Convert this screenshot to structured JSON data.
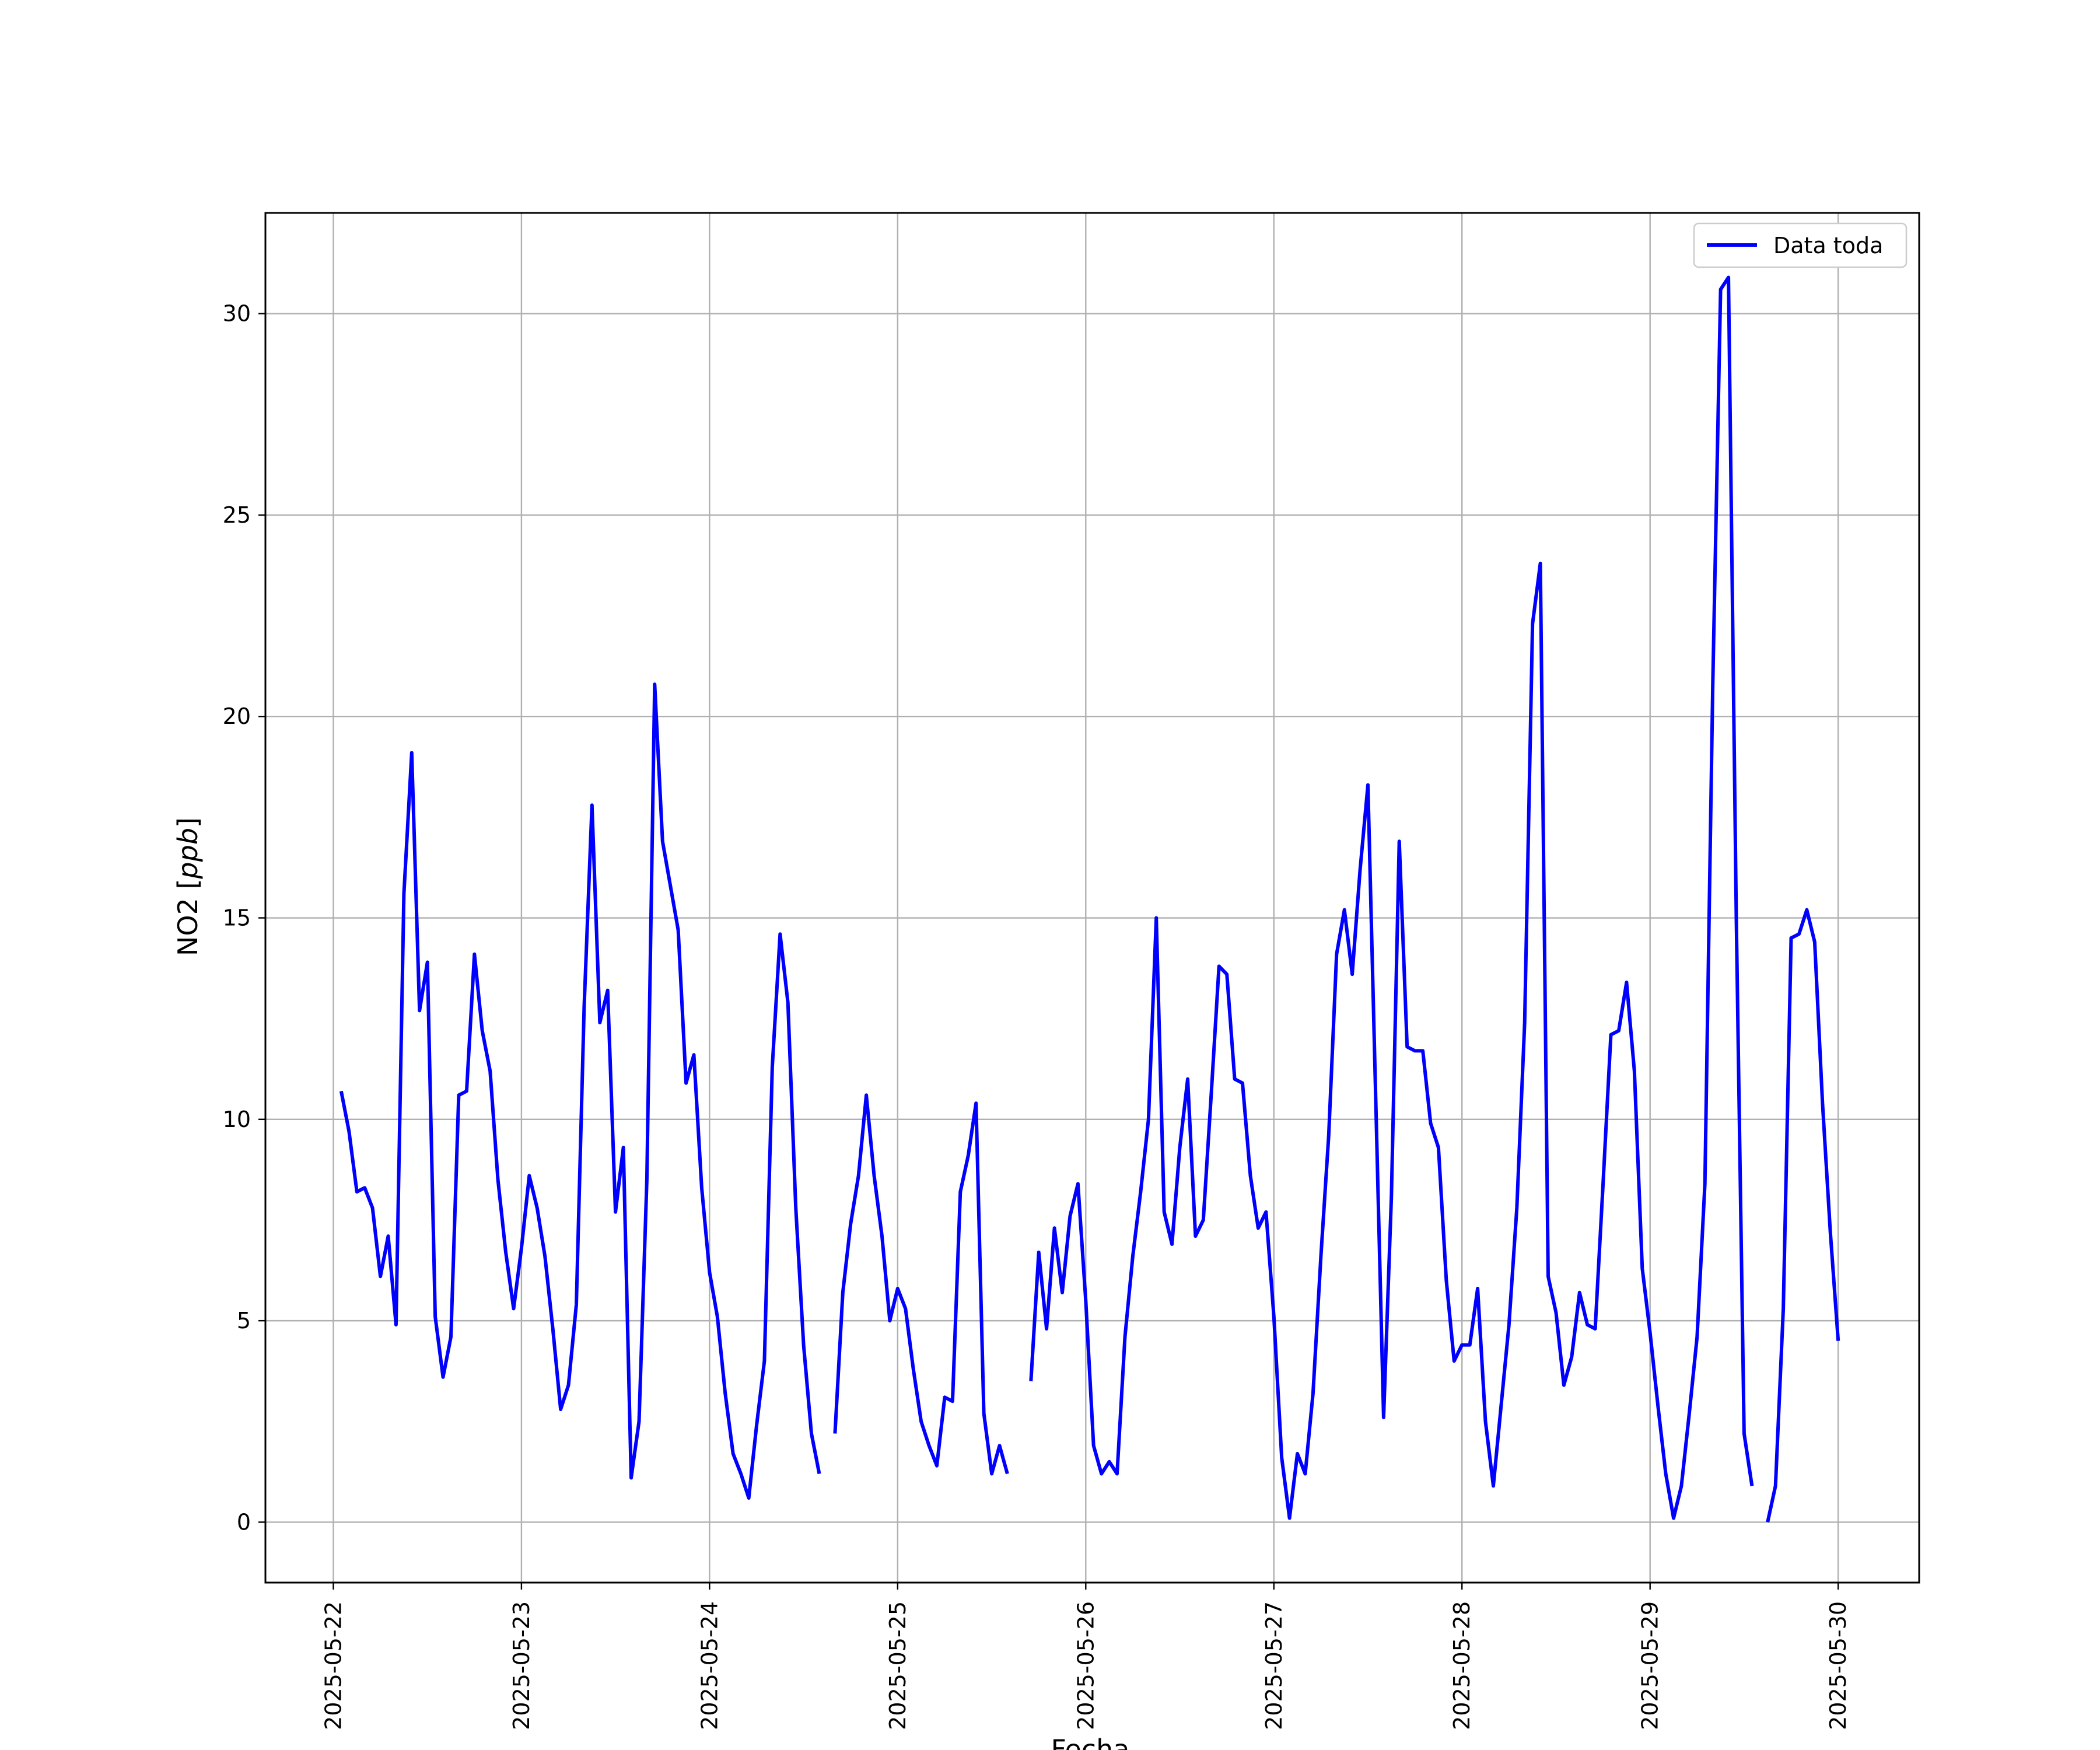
{
  "chart_data": {
    "type": "line",
    "title": "",
    "xlabel": "Fecha",
    "ylabel_main": "NO2 [",
    "ylabel_italic": "ppb",
    "ylabel_end": "]",
    "xlim": [
      "2025-05-21 15:20",
      "2025-05-30 10:20"
    ],
    "ylim": [
      -1.5,
      32.5
    ],
    "grid": true,
    "legend_position": "top-right",
    "line_color": "#0000ff",
    "x_ticks": [
      "2025-05-22",
      "2025-05-23",
      "2025-05-24",
      "2025-05-25",
      "2025-05-26",
      "2025-05-27",
      "2025-05-28",
      "2025-05-29",
      "2025-05-30"
    ],
    "y_ticks": [
      0,
      5,
      10,
      15,
      20,
      25,
      30
    ],
    "series": [
      {
        "name": "Data toda",
        "segments": [
          [
            [
              "2025-05-22 01:00",
              10.7
            ],
            [
              "2025-05-22 02:00",
              9.7
            ],
            [
              "2025-05-22 03:00",
              8.2
            ],
            [
              "2025-05-22 04:00",
              8.3
            ],
            [
              "2025-05-22 05:00",
              7.8
            ],
            [
              "2025-05-22 06:00",
              6.1
            ],
            [
              "2025-05-22 07:00",
              7.1
            ],
            [
              "2025-05-22 08:00",
              4.9
            ],
            [
              "2025-05-22 09:00",
              15.6
            ],
            [
              "2025-05-22 10:00",
              19.1
            ],
            [
              "2025-05-22 11:00",
              12.7
            ],
            [
              "2025-05-22 12:00",
              13.9
            ],
            [
              "2025-05-22 13:00",
              5.1
            ],
            [
              "2025-05-22 14:00",
              3.6
            ],
            [
              "2025-05-22 15:00",
              4.6
            ],
            [
              "2025-05-22 16:00",
              10.6
            ],
            [
              "2025-05-22 17:00",
              10.7
            ],
            [
              "2025-05-22 18:00",
              14.1
            ],
            [
              "2025-05-22 19:00",
              12.2
            ],
            [
              "2025-05-22 20:00",
              11.2
            ],
            [
              "2025-05-22 21:00",
              8.5
            ],
            [
              "2025-05-22 22:00",
              6.7
            ],
            [
              "2025-05-22 23:00",
              5.3
            ],
            [
              "2025-05-23 00:00",
              6.8
            ],
            [
              "2025-05-23 01:00",
              8.6
            ],
            [
              "2025-05-23 02:00",
              7.8
            ],
            [
              "2025-05-23 03:00",
              6.6
            ],
            [
              "2025-05-23 04:00",
              4.8
            ],
            [
              "2025-05-23 05:00",
              2.8
            ],
            [
              "2025-05-23 06:00",
              3.4
            ],
            [
              "2025-05-23 07:00",
              5.4
            ],
            [
              "2025-05-23 08:00",
              12.8
            ],
            [
              "2025-05-23 09:00",
              17.8
            ],
            [
              "2025-05-23 10:00",
              12.4
            ],
            [
              "2025-05-23 11:00",
              13.2
            ],
            [
              "2025-05-23 12:00",
              7.7
            ],
            [
              "2025-05-23 13:00",
              9.3
            ],
            [
              "2025-05-23 14:00",
              1.1
            ],
            [
              "2025-05-23 15:00",
              2.5
            ],
            [
              "2025-05-23 16:00",
              8.5
            ],
            [
              "2025-05-23 17:00",
              20.8
            ],
            [
              "2025-05-23 18:00",
              16.9
            ],
            [
              "2025-05-23 19:00",
              15.8
            ],
            [
              "2025-05-23 20:00",
              14.7
            ],
            [
              "2025-05-23 21:00",
              10.9
            ],
            [
              "2025-05-23 22:00",
              11.6
            ],
            [
              "2025-05-23 23:00",
              8.3
            ],
            [
              "2025-05-24 00:00",
              6.2
            ],
            [
              "2025-05-24 01:00",
              5.1
            ],
            [
              "2025-05-24 02:00",
              3.2
            ],
            [
              "2025-05-24 03:00",
              1.7
            ],
            [
              "2025-05-24 04:00",
              1.2
            ],
            [
              "2025-05-24 05:00",
              0.6
            ],
            [
              "2025-05-24 06:00",
              2.4
            ],
            [
              "2025-05-24 07:00",
              4.0
            ],
            [
              "2025-05-24 08:00",
              11.3
            ],
            [
              "2025-05-24 09:00",
              14.6
            ],
            [
              "2025-05-24 10:00",
              12.9
            ],
            [
              "2025-05-24 11:00",
              7.8
            ],
            [
              "2025-05-24 12:00",
              4.4
            ],
            [
              "2025-05-24 13:00",
              2.2
            ],
            [
              "2025-05-24 14:00",
              1.2
            ]
          ],
          [
            [
              "2025-05-24 16:00",
              2.2
            ],
            [
              "2025-05-24 17:00",
              5.7
            ],
            [
              "2025-05-24 18:00",
              7.4
            ],
            [
              "2025-05-24 19:00",
              8.6
            ],
            [
              "2025-05-24 20:00",
              10.6
            ],
            [
              "2025-05-24 21:00",
              8.6
            ],
            [
              "2025-05-24 22:00",
              7.1
            ],
            [
              "2025-05-24 23:00",
              5.0
            ],
            [
              "2025-05-25 00:00",
              5.8
            ],
            [
              "2025-05-25 01:00",
              5.3
            ],
            [
              "2025-05-25 02:00",
              3.8
            ],
            [
              "2025-05-25 03:00",
              2.5
            ],
            [
              "2025-05-25 04:00",
              1.9
            ],
            [
              "2025-05-25 05:00",
              1.4
            ],
            [
              "2025-05-25 06:00",
              3.1
            ],
            [
              "2025-05-25 07:00",
              3.0
            ],
            [
              "2025-05-25 08:00",
              8.2
            ],
            [
              "2025-05-25 09:00",
              9.1
            ],
            [
              "2025-05-25 10:00",
              10.4
            ],
            [
              "2025-05-25 11:00",
              2.7
            ],
            [
              "2025-05-25 12:00",
              1.2
            ],
            [
              "2025-05-25 13:00",
              1.9
            ],
            [
              "2025-05-25 14:00",
              1.2
            ]
          ],
          [
            [
              "2025-05-25 17:00",
              3.5
            ],
            [
              "2025-05-25 18:00",
              6.7
            ],
            [
              "2025-05-25 19:00",
              4.8
            ],
            [
              "2025-05-25 20:00",
              7.3
            ],
            [
              "2025-05-25 21:00",
              5.7
            ],
            [
              "2025-05-25 22:00",
              7.6
            ],
            [
              "2025-05-25 23:00",
              8.4
            ],
            [
              "2025-05-26 00:00",
              5.5
            ],
            [
              "2025-05-26 01:00",
              1.9
            ],
            [
              "2025-05-26 02:00",
              1.2
            ],
            [
              "2025-05-26 03:00",
              1.5
            ],
            [
              "2025-05-26 04:00",
              1.2
            ],
            [
              "2025-05-26 05:00",
              4.6
            ],
            [
              "2025-05-26 06:00",
              6.6
            ],
            [
              "2025-05-26 07:00",
              8.2
            ],
            [
              "2025-05-26 08:00",
              10.0
            ],
            [
              "2025-05-26 09:00",
              15.0
            ],
            [
              "2025-05-26 10:00",
              7.7
            ],
            [
              "2025-05-26 11:00",
              6.9
            ],
            [
              "2025-05-26 12:00",
              9.3
            ],
            [
              "2025-05-26 13:00",
              11.0
            ],
            [
              "2025-05-26 14:00",
              7.1
            ],
            [
              "2025-05-26 15:00",
              7.5
            ],
            [
              "2025-05-26 16:00",
              10.6
            ],
            [
              "2025-05-26 17:00",
              13.8
            ],
            [
              "2025-05-26 18:00",
              13.6
            ],
            [
              "2025-05-26 19:00",
              11.0
            ],
            [
              "2025-05-26 20:00",
              10.9
            ],
            [
              "2025-05-26 21:00",
              8.6
            ],
            [
              "2025-05-26 22:00",
              7.3
            ],
            [
              "2025-05-26 23:00",
              7.7
            ],
            [
              "2025-05-27 00:00",
              5.1
            ],
            [
              "2025-05-27 01:00",
              1.6
            ],
            [
              "2025-05-27 02:00",
              0.1
            ],
            [
              "2025-05-27 03:00",
              1.7
            ],
            [
              "2025-05-27 04:00",
              1.2
            ],
            [
              "2025-05-27 05:00",
              3.2
            ],
            [
              "2025-05-27 06:00",
              6.6
            ],
            [
              "2025-05-27 07:00",
              9.6
            ],
            [
              "2025-05-27 08:00",
              14.1
            ],
            [
              "2025-05-27 09:00",
              15.2
            ],
            [
              "2025-05-27 10:00",
              13.6
            ],
            [
              "2025-05-27 11:00",
              16.2
            ],
            [
              "2025-05-27 12:00",
              18.3
            ],
            [
              "2025-05-27 13:00",
              10.5
            ],
            [
              "2025-05-27 14:00",
              2.6
            ],
            [
              "2025-05-27 15:00",
              8.1
            ],
            [
              "2025-05-27 16:00",
              16.9
            ],
            [
              "2025-05-27 17:00",
              11.8
            ],
            [
              "2025-05-27 18:00",
              11.7
            ],
            [
              "2025-05-27 19:00",
              11.7
            ],
            [
              "2025-05-27 20:00",
              9.9
            ],
            [
              "2025-05-27 21:00",
              9.3
            ],
            [
              "2025-05-27 22:00",
              6.0
            ],
            [
              "2025-05-27 23:00",
              4.0
            ],
            [
              "2025-05-28 00:00",
              4.4
            ],
            [
              "2025-05-28 01:00",
              4.4
            ],
            [
              "2025-05-28 02:00",
              5.8
            ],
            [
              "2025-05-28 03:00",
              2.5
            ],
            [
              "2025-05-28 04:00",
              0.9
            ],
            [
              "2025-05-28 05:00",
              2.9
            ],
            [
              "2025-05-28 06:00",
              4.9
            ],
            [
              "2025-05-28 07:00",
              7.8
            ],
            [
              "2025-05-28 08:00",
              12.4
            ],
            [
              "2025-05-28 09:00",
              22.3
            ],
            [
              "2025-05-28 10:00",
              23.8
            ],
            [
              "2025-05-28 11:00",
              6.1
            ],
            [
              "2025-05-28 12:00",
              5.2
            ],
            [
              "2025-05-28 13:00",
              3.4
            ],
            [
              "2025-05-28 14:00",
              4.1
            ],
            [
              "2025-05-28 15:00",
              5.7
            ],
            [
              "2025-05-28 16:00",
              4.9
            ],
            [
              "2025-05-28 17:00",
              4.8
            ],
            [
              "2025-05-28 18:00",
              8.4
            ],
            [
              "2025-05-28 19:00",
              12.1
            ],
            [
              "2025-05-28 20:00",
              12.2
            ],
            [
              "2025-05-28 21:00",
              13.4
            ],
            [
              "2025-05-28 22:00",
              11.2
            ],
            [
              "2025-05-28 23:00",
              6.3
            ],
            [
              "2025-05-29 00:00",
              4.7
            ],
            [
              "2025-05-29 01:00",
              2.9
            ],
            [
              "2025-05-29 02:00",
              1.2
            ],
            [
              "2025-05-29 03:00",
              0.1
            ],
            [
              "2025-05-29 04:00",
              0.9
            ],
            [
              "2025-05-29 05:00",
              2.7
            ],
            [
              "2025-05-29 06:00",
              4.6
            ],
            [
              "2025-05-29 07:00",
              8.4
            ],
            [
              "2025-05-29 08:00",
              20.8
            ],
            [
              "2025-05-29 09:00",
              30.6
            ],
            [
              "2025-05-29 10:00",
              30.9
            ],
            [
              "2025-05-29 11:00",
              15.0
            ],
            [
              "2025-05-29 12:00",
              2.2
            ],
            [
              "2025-05-29 13:00",
              0.9
            ]
          ],
          [
            [
              "2025-05-29 15:00",
              0.0
            ],
            [
              "2025-05-29 16:00",
              0.9
            ],
            [
              "2025-05-29 17:00",
              5.3
            ],
            [
              "2025-05-29 18:00",
              14.5
            ],
            [
              "2025-05-29 19:00",
              14.6
            ],
            [
              "2025-05-29 20:00",
              15.2
            ],
            [
              "2025-05-29 21:00",
              14.4
            ],
            [
              "2025-05-29 22:00",
              10.4
            ],
            [
              "2025-05-29 23:00",
              7.2
            ],
            [
              "2025-05-30 00:00",
              4.5
            ]
          ]
        ]
      }
    ]
  }
}
